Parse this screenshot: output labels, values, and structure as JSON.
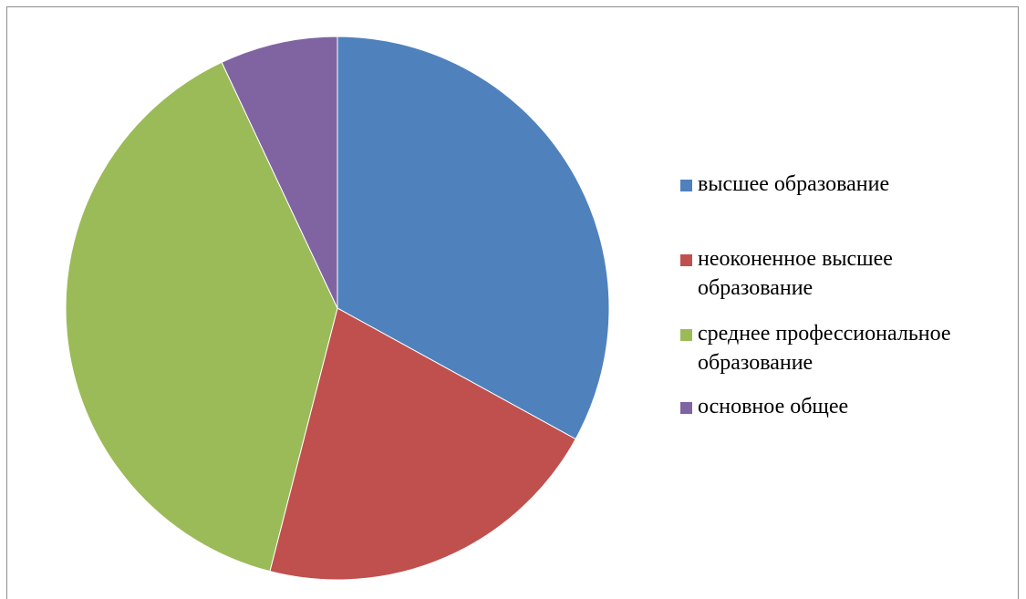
{
  "chart_data": {
    "type": "pie",
    "title": "",
    "legend_position": "right",
    "categories": [
      "высшее образование",
      "неоконенное высшее образование",
      "среднее профессиональное образование",
      "основное общее"
    ],
    "values": [
      33,
      21,
      39,
      7
    ],
    "colors": [
      "#4F81BD",
      "#C0504D",
      "#9BBB59",
      "#8064A2"
    ]
  }
}
